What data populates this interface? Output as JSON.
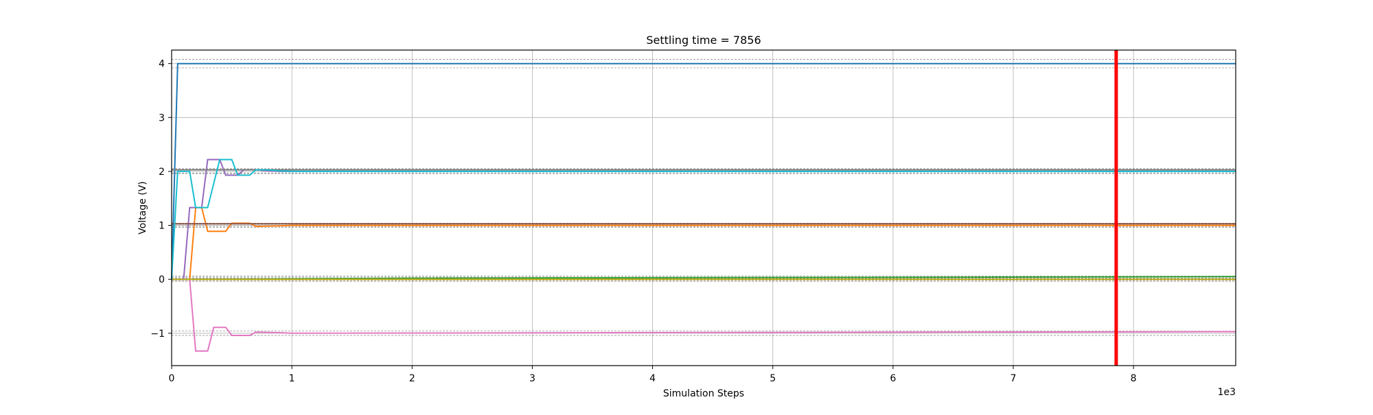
{
  "chart_data": {
    "type": "line",
    "title": "Settling time = 7856",
    "xlabel": "Simulation Steps",
    "ylabel": "Voltage (V)",
    "x_multiplier_label": "1e3",
    "xlim": [
      0,
      8850
    ],
    "ylim": [
      -1.6,
      4.25
    ],
    "xticks": [
      0,
      1000,
      2000,
      3000,
      4000,
      5000,
      6000,
      7000,
      8000
    ],
    "xtick_labels": [
      "0",
      "1",
      "2",
      "3",
      "4",
      "5",
      "6",
      "7",
      "8"
    ],
    "yticks": [
      -1,
      0,
      1,
      2,
      3,
      4
    ],
    "ytick_labels": [
      "−1",
      "0",
      "1",
      "2",
      "3",
      "4"
    ],
    "grid": true,
    "settling_time": 7856,
    "marker_color": "#ff0000",
    "tolerance_bands": [
      [
        3.92,
        4.08
      ],
      [
        1.96,
        2.04
      ],
      [
        0.98,
        1.02
      ],
      [
        0.96,
        1.04
      ],
      [
        1.97,
        2.05
      ],
      [
        -0.04,
        0.04
      ],
      [
        -0.96,
        -1.04
      ],
      [
        0.01,
        0.06
      ],
      [
        -0.02,
        0.02
      ]
    ],
    "series": [
      {
        "color": "#1f77b4",
        "x": [
          0,
          50,
          8850
        ],
        "y": [
          0,
          4.0,
          4.0
        ]
      },
      {
        "color": "#ff7f0e",
        "x": [
          0,
          150,
          200,
          250,
          300,
          450,
          500,
          650,
          700,
          900,
          1000,
          8850
        ],
        "y": [
          0,
          0,
          1.33,
          1.33,
          0.89,
          0.89,
          1.04,
          1.04,
          0.98,
          0.99,
          1.0,
          1.0
        ]
      },
      {
        "color": "#2ca02c",
        "x": [
          0,
          2000,
          8850
        ],
        "y": [
          0,
          0.02,
          0.05
        ]
      },
      {
        "color": "#d62728",
        "x": [
          0,
          8850
        ],
        "y": [
          0.0,
          0.0
        ]
      },
      {
        "color": "#9467bd",
        "x": [
          0,
          100,
          150,
          250,
          300,
          350,
          400,
          450,
          550,
          600,
          700,
          800,
          900,
          8850
        ],
        "y": [
          0,
          0,
          1.33,
          1.33,
          2.22,
          2.22,
          2.22,
          1.93,
          1.93,
          2.03,
          2.03,
          2.01,
          2.0,
          2.0
        ]
      },
      {
        "color": "#8c564b",
        "x": [
          0,
          8850
        ],
        "y": [
          1.03,
          1.03
        ]
      },
      {
        "color": "#e377c2",
        "x": [
          0,
          150,
          200,
          300,
          350,
          450,
          500,
          650,
          700,
          900,
          1000,
          8850
        ],
        "y": [
          0,
          0,
          -1.33,
          -1.33,
          -0.89,
          -0.89,
          -1.04,
          -1.04,
          -0.98,
          -0.99,
          -1.0,
          -0.97
        ]
      },
      {
        "color": "#7f7f7f",
        "x": [
          0,
          8850
        ],
        "y": [
          2.03,
          2.03
        ]
      },
      {
        "color": "#bcbd22",
        "x": [
          0,
          8850
        ],
        "y": [
          0.0,
          0.0
        ]
      },
      {
        "color": "#17becf",
        "x": [
          0,
          50,
          150,
          200,
          300,
          400,
          450,
          500,
          550,
          650,
          700,
          800,
          900,
          1000,
          8850
        ],
        "y": [
          0,
          2.0,
          2.0,
          1.33,
          1.33,
          2.22,
          2.22,
          2.22,
          1.93,
          1.93,
          2.03,
          2.03,
          2.01,
          2.0,
          2.0
        ]
      }
    ]
  }
}
